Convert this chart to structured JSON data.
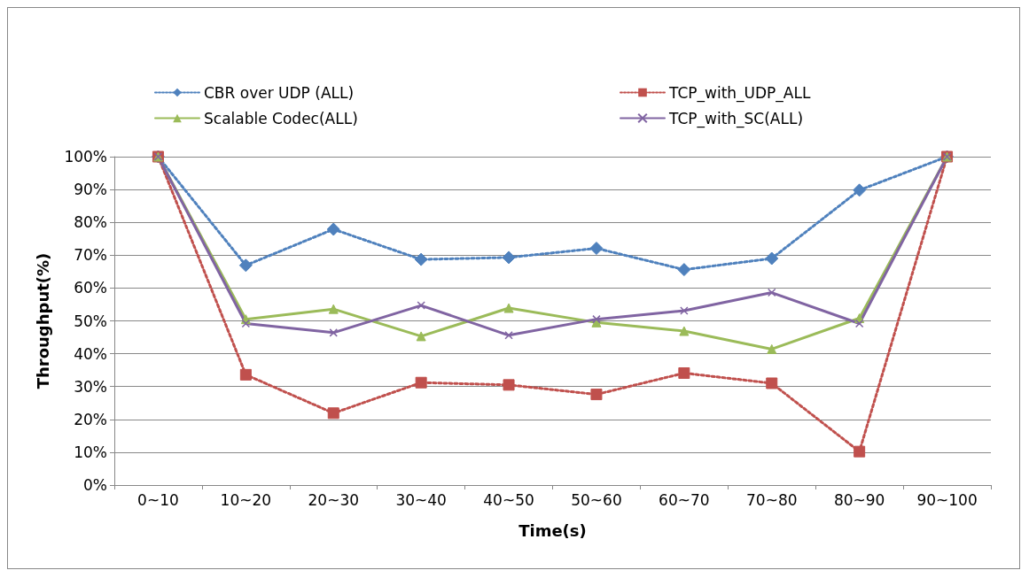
{
  "chart_data": {
    "type": "line",
    "xlabel": "Time(s)",
    "ylabel": "Throughput(%)",
    "categories": [
      "0~10",
      "10~20",
      "20~30",
      "30~40",
      "40~50",
      "50~60",
      "60~70",
      "70~80",
      "80~90",
      "90~100"
    ],
    "series": [
      {
        "name": "CBR over UDP (ALL)",
        "color": "#4f81bd",
        "marker": "diamond",
        "line_style": "dotted",
        "values": [
          100,
          66.9,
          77.9,
          68.7,
          69.3,
          72.1,
          65.6,
          69,
          89.8,
          100
        ]
      },
      {
        "name": "TCP_with_UDP_ALL",
        "color": "#c0504d",
        "marker": "square",
        "line_style": "dotted",
        "values": [
          100,
          33.6,
          21.9,
          31.2,
          30.5,
          27.6,
          34.1,
          31,
          10.2,
          100
        ]
      },
      {
        "name": "Scalable Codec(ALL)",
        "color": "#9bbb59",
        "marker": "triangle",
        "line_style": "solid",
        "values": [
          100,
          50.5,
          53.6,
          45.3,
          53.9,
          49.5,
          46.9,
          41.4,
          50.8,
          100
        ]
      },
      {
        "name": "TCP_with_SC(ALL)",
        "color": "#8064a2",
        "marker": "cross",
        "line_style": "solid",
        "values": [
          100,
          49.2,
          46.4,
          54.7,
          45.6,
          50.5,
          53.1,
          58.6,
          49.2,
          100
        ]
      }
    ],
    "ylim": [
      0,
      100
    ],
    "yticks": [
      {
        "value": 0,
        "label": "0%"
      },
      {
        "value": 10,
        "label": "10%"
      },
      {
        "value": 20,
        "label": "20%"
      },
      {
        "value": 30,
        "label": "30%"
      },
      {
        "value": 40,
        "label": "40%"
      },
      {
        "value": 50,
        "label": "50%"
      },
      {
        "value": 60,
        "label": "60%"
      },
      {
        "value": 70,
        "label": "70%"
      },
      {
        "value": 80,
        "label": "80%"
      },
      {
        "value": 90,
        "label": "90%"
      },
      {
        "value": 100,
        "label": "100%"
      }
    ],
    "grid": "y",
    "legend": "top"
  }
}
